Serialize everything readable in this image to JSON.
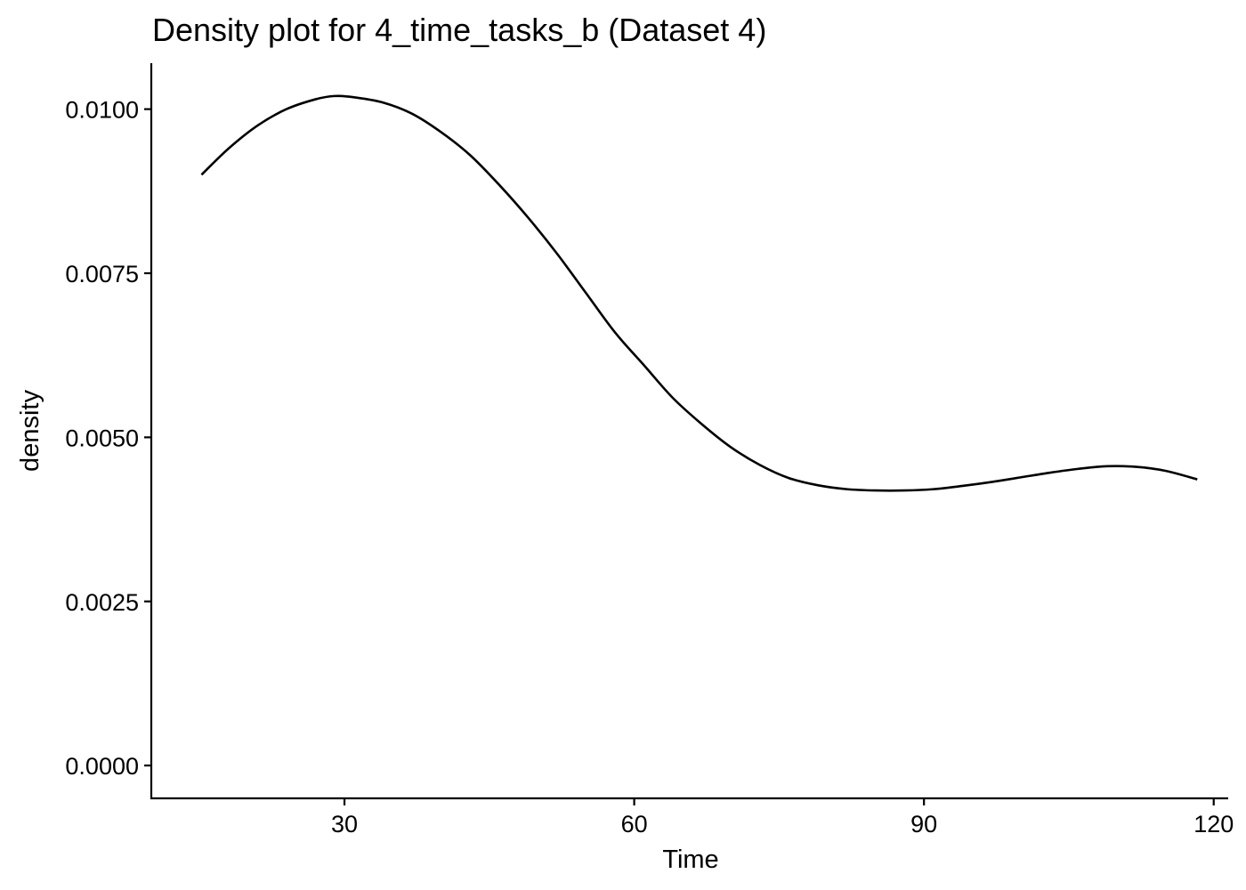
{
  "chart_data": {
    "type": "line",
    "title": "Density plot for 4_time_tasks_b (Dataset 4)",
    "xlabel": "Time",
    "ylabel": "density",
    "xlim": [
      10,
      121.5
    ],
    "ylim": [
      -0.0005,
      0.0107
    ],
    "x_ticks": [
      {
        "value": 30,
        "label": "30"
      },
      {
        "value": 60,
        "label": "60"
      },
      {
        "value": 90,
        "label": "90"
      },
      {
        "value": 120,
        "label": "120"
      }
    ],
    "y_ticks": [
      {
        "value": 0.0,
        "label": "0.0000"
      },
      {
        "value": 0.0025,
        "label": "0.0025"
      },
      {
        "value": 0.005,
        "label": "0.0050"
      },
      {
        "value": 0.0075,
        "label": "0.0075"
      },
      {
        "value": 0.01,
        "label": "0.0100"
      }
    ],
    "grid": false,
    "line_color": "#000000",
    "series": [
      {
        "x": [
          15.2,
          18,
          21,
          24,
          27,
          29,
          31,
          34,
          37,
          40,
          43,
          46,
          49,
          52,
          55,
          58,
          61,
          64,
          67,
          70,
          73,
          76,
          79,
          82,
          85,
          88,
          91,
          94,
          97,
          100,
          103,
          106,
          109,
          112,
          115,
          118.3
        ],
        "y": [
          0.009,
          0.0094,
          0.00975,
          0.01,
          0.01015,
          0.0102,
          0.01018,
          0.0101,
          0.00993,
          0.00965,
          0.0093,
          0.00885,
          0.00835,
          0.0078,
          0.0072,
          0.0066,
          0.0061,
          0.0056,
          0.0052,
          0.00485,
          0.00458,
          0.00438,
          0.00427,
          0.00421,
          0.00419,
          0.00419,
          0.00421,
          0.00426,
          0.00432,
          0.00439,
          0.00446,
          0.00452,
          0.00456,
          0.00455,
          0.00449,
          0.00436
        ]
      }
    ]
  }
}
